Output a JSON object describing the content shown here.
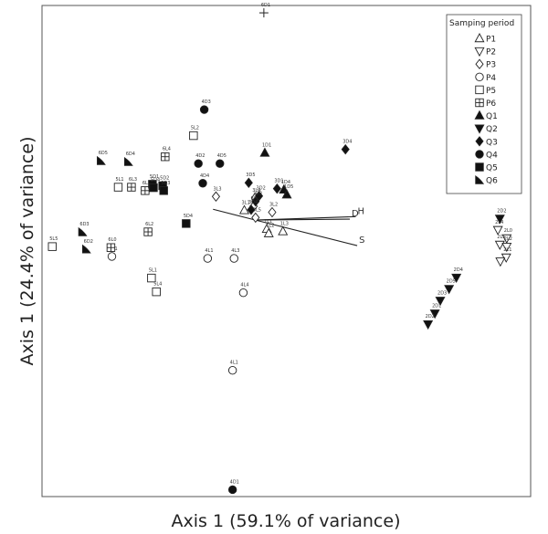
{
  "chart_data": {
    "type": "scatter",
    "title": "",
    "xlabel": "Axis 1 (59.1% of variance)",
    "ylabel": "Axis 1 (24.4% of variance)",
    "xlim": [
      0,
      100
    ],
    "ylim": [
      0,
      100
    ],
    "grid": false,
    "legend": {
      "title": "Samping period",
      "placement": "top-right",
      "entries": [
        {
          "label": "P1",
          "marker": "triangle-up-open"
        },
        {
          "label": "P2",
          "marker": "triangle-down-open"
        },
        {
          "label": "P3",
          "marker": "diamond-open"
        },
        {
          "label": "P4",
          "marker": "circle-open"
        },
        {
          "label": "P5",
          "marker": "square-open"
        },
        {
          "label": "P6",
          "marker": "square-cross-open"
        },
        {
          "label": "Q1",
          "marker": "triangle-up-filled"
        },
        {
          "label": "Q2",
          "marker": "triangle-down-filled"
        },
        {
          "label": "Q3",
          "marker": "diamond-filled"
        },
        {
          "label": "Q4",
          "marker": "circle-filled"
        },
        {
          "label": "Q5",
          "marker": "square-filled"
        },
        {
          "label": "Q6",
          "marker": "leaf-filled"
        }
      ]
    },
    "series": [
      {
        "name": "P1",
        "marker": "triangle-up-open",
        "points": [
          {
            "x": 41.4,
            "y": 58.3,
            "label": "3L1"
          },
          {
            "x": 46.0,
            "y": 54.5,
            "label": "1L1"
          },
          {
            "x": 46.4,
            "y": 53.6,
            "label": "1L2"
          },
          {
            "x": 49.3,
            "y": 54.0,
            "label": "1L3"
          }
        ]
      },
      {
        "name": "P2",
        "marker": "triangle-down-open",
        "points": [
          {
            "x": 93.3,
            "y": 54.3,
            "label": "2L4"
          },
          {
            "x": 95.1,
            "y": 52.6,
            "label": "2L0"
          },
          {
            "x": 93.7,
            "y": 51.3,
            "label": "2L5"
          },
          {
            "x": 95.1,
            "y": 50.9,
            "label": "2L2"
          },
          {
            "x": 95.0,
            "y": 48.7,
            "label": "2L1"
          },
          {
            "x": 93.8,
            "y": 47.9,
            "label": ""
          }
        ]
      },
      {
        "name": "P3",
        "marker": "diamond-open",
        "points": [
          {
            "x": 35.6,
            "y": 61.1,
            "label": "3L3"
          },
          {
            "x": 43.6,
            "y": 60.8,
            "label": "3L4"
          },
          {
            "x": 43.3,
            "y": 59.1,
            "label": "3L6"
          },
          {
            "x": 47.1,
            "y": 57.9,
            "label": "3L2"
          },
          {
            "x": 43.7,
            "y": 56.8,
            "label": "3L5"
          }
        ]
      },
      {
        "name": "P4",
        "marker": "circle-open",
        "points": [
          {
            "x": 14.3,
            "y": 48.9,
            "label": "6L1"
          },
          {
            "x": 33.9,
            "y": 48.5,
            "label": "4L1"
          },
          {
            "x": 39.3,
            "y": 48.5,
            "label": "4L3"
          },
          {
            "x": 41.2,
            "y": 41.5,
            "label": "4L4"
          },
          {
            "x": 39.0,
            "y": 25.7,
            "label": "4L1"
          }
        ]
      },
      {
        "name": "P5",
        "marker": "square-open",
        "points": [
          {
            "x": 31.0,
            "y": 73.5,
            "label": "5L2"
          },
          {
            "x": 15.6,
            "y": 63.0,
            "label": "5L1"
          },
          {
            "x": 2.1,
            "y": 50.9,
            "label": "5L5"
          },
          {
            "x": 22.4,
            "y": 44.5,
            "label": "5L1"
          },
          {
            "x": 23.4,
            "y": 41.7,
            "label": "5L4"
          }
        ]
      },
      {
        "name": "P6",
        "marker": "square-cross-open",
        "points": [
          {
            "x": 25.2,
            "y": 69.2,
            "label": "6L4"
          },
          {
            "x": 18.3,
            "y": 63.0,
            "label": "6L3"
          },
          {
            "x": 21.1,
            "y": 62.3,
            "label": "6L5"
          },
          {
            "x": 21.7,
            "y": 53.9,
            "label": "6L2"
          },
          {
            "x": 14.1,
            "y": 50.7,
            "label": "6L0"
          },
          {
            "x": 45.4,
            "y": 98.5,
            "label": "6D1"
          }
        ]
      },
      {
        "name": "Q1",
        "marker": "triangle-up-filled",
        "points": [
          {
            "x": 45.6,
            "y": 70.0,
            "label": "1D1"
          },
          {
            "x": 49.5,
            "y": 62.5,
            "label": "1D4"
          },
          {
            "x": 50.1,
            "y": 61.5,
            "label": "1D5"
          }
        ]
      },
      {
        "name": "Q2",
        "marker": "triangle-down-filled",
        "points": [
          {
            "x": 93.7,
            "y": 56.6,
            "label": "2D2"
          },
          {
            "x": 84.8,
            "y": 44.6,
            "label": "2D4"
          },
          {
            "x": 83.3,
            "y": 42.3,
            "label": "2D5"
          },
          {
            "x": 81.5,
            "y": 39.9,
            "label": "2D3"
          },
          {
            "x": 80.4,
            "y": 37.3,
            "label": "2D1"
          },
          {
            "x": 79.0,
            "y": 35.1,
            "label": "2D2"
          }
        ]
      },
      {
        "name": "Q3",
        "marker": "diamond-filled",
        "points": [
          {
            "x": 62.1,
            "y": 70.7,
            "label": "3D4"
          },
          {
            "x": 42.3,
            "y": 63.9,
            "label": "3D5"
          },
          {
            "x": 48.1,
            "y": 62.7,
            "label": "3D1"
          },
          {
            "x": 44.4,
            "y": 61.2,
            "label": "3D2"
          },
          {
            "x": 43.7,
            "y": 60.1,
            "label": "3D3"
          },
          {
            "x": 42.8,
            "y": 58.4,
            "label": "3D4"
          }
        ]
      },
      {
        "name": "Q4",
        "marker": "circle-filled",
        "points": [
          {
            "x": 33.2,
            "y": 78.8,
            "label": "4D3"
          },
          {
            "x": 32.0,
            "y": 67.8,
            "label": "4D2"
          },
          {
            "x": 36.4,
            "y": 67.8,
            "label": "4D5"
          },
          {
            "x": 32.9,
            "y": 63.8,
            "label": "4D4"
          },
          {
            "x": 39.0,
            "y": 1.4,
            "label": "4D1"
          }
        ]
      },
      {
        "name": "Q5",
        "marker": "square-filled",
        "points": [
          {
            "x": 22.6,
            "y": 63.6,
            "label": "5D1"
          },
          {
            "x": 24.7,
            "y": 63.3,
            "label": "5D2"
          },
          {
            "x": 24.9,
            "y": 62.3,
            "label": "5D3"
          },
          {
            "x": 22.8,
            "y": 62.9,
            "label": "5D4"
          },
          {
            "x": 29.5,
            "y": 55.6,
            "label": "5D4"
          }
        ]
      },
      {
        "name": "Q6",
        "marker": "leaf-filled",
        "points": [
          {
            "x": 12.1,
            "y": 68.4,
            "label": "6D5"
          },
          {
            "x": 17.7,
            "y": 68.2,
            "label": "6D4"
          },
          {
            "x": 8.3,
            "y": 53.9,
            "label": "6D3"
          },
          {
            "x": 9.1,
            "y": 50.4,
            "label": "6D2"
          }
        ]
      }
    ],
    "vectors": [
      {
        "label": "D",
        "x": 63.0,
        "y": 56.5
      },
      {
        "label": "H",
        "x": 64.2,
        "y": 57.0
      },
      {
        "label": "S",
        "x": 64.5,
        "y": 51.1
      },
      {
        "label": "",
        "x": 35.0,
        "y": 58.5
      }
    ],
    "vector_origin": {
      "x": 43.7,
      "y": 56.3
    }
  }
}
